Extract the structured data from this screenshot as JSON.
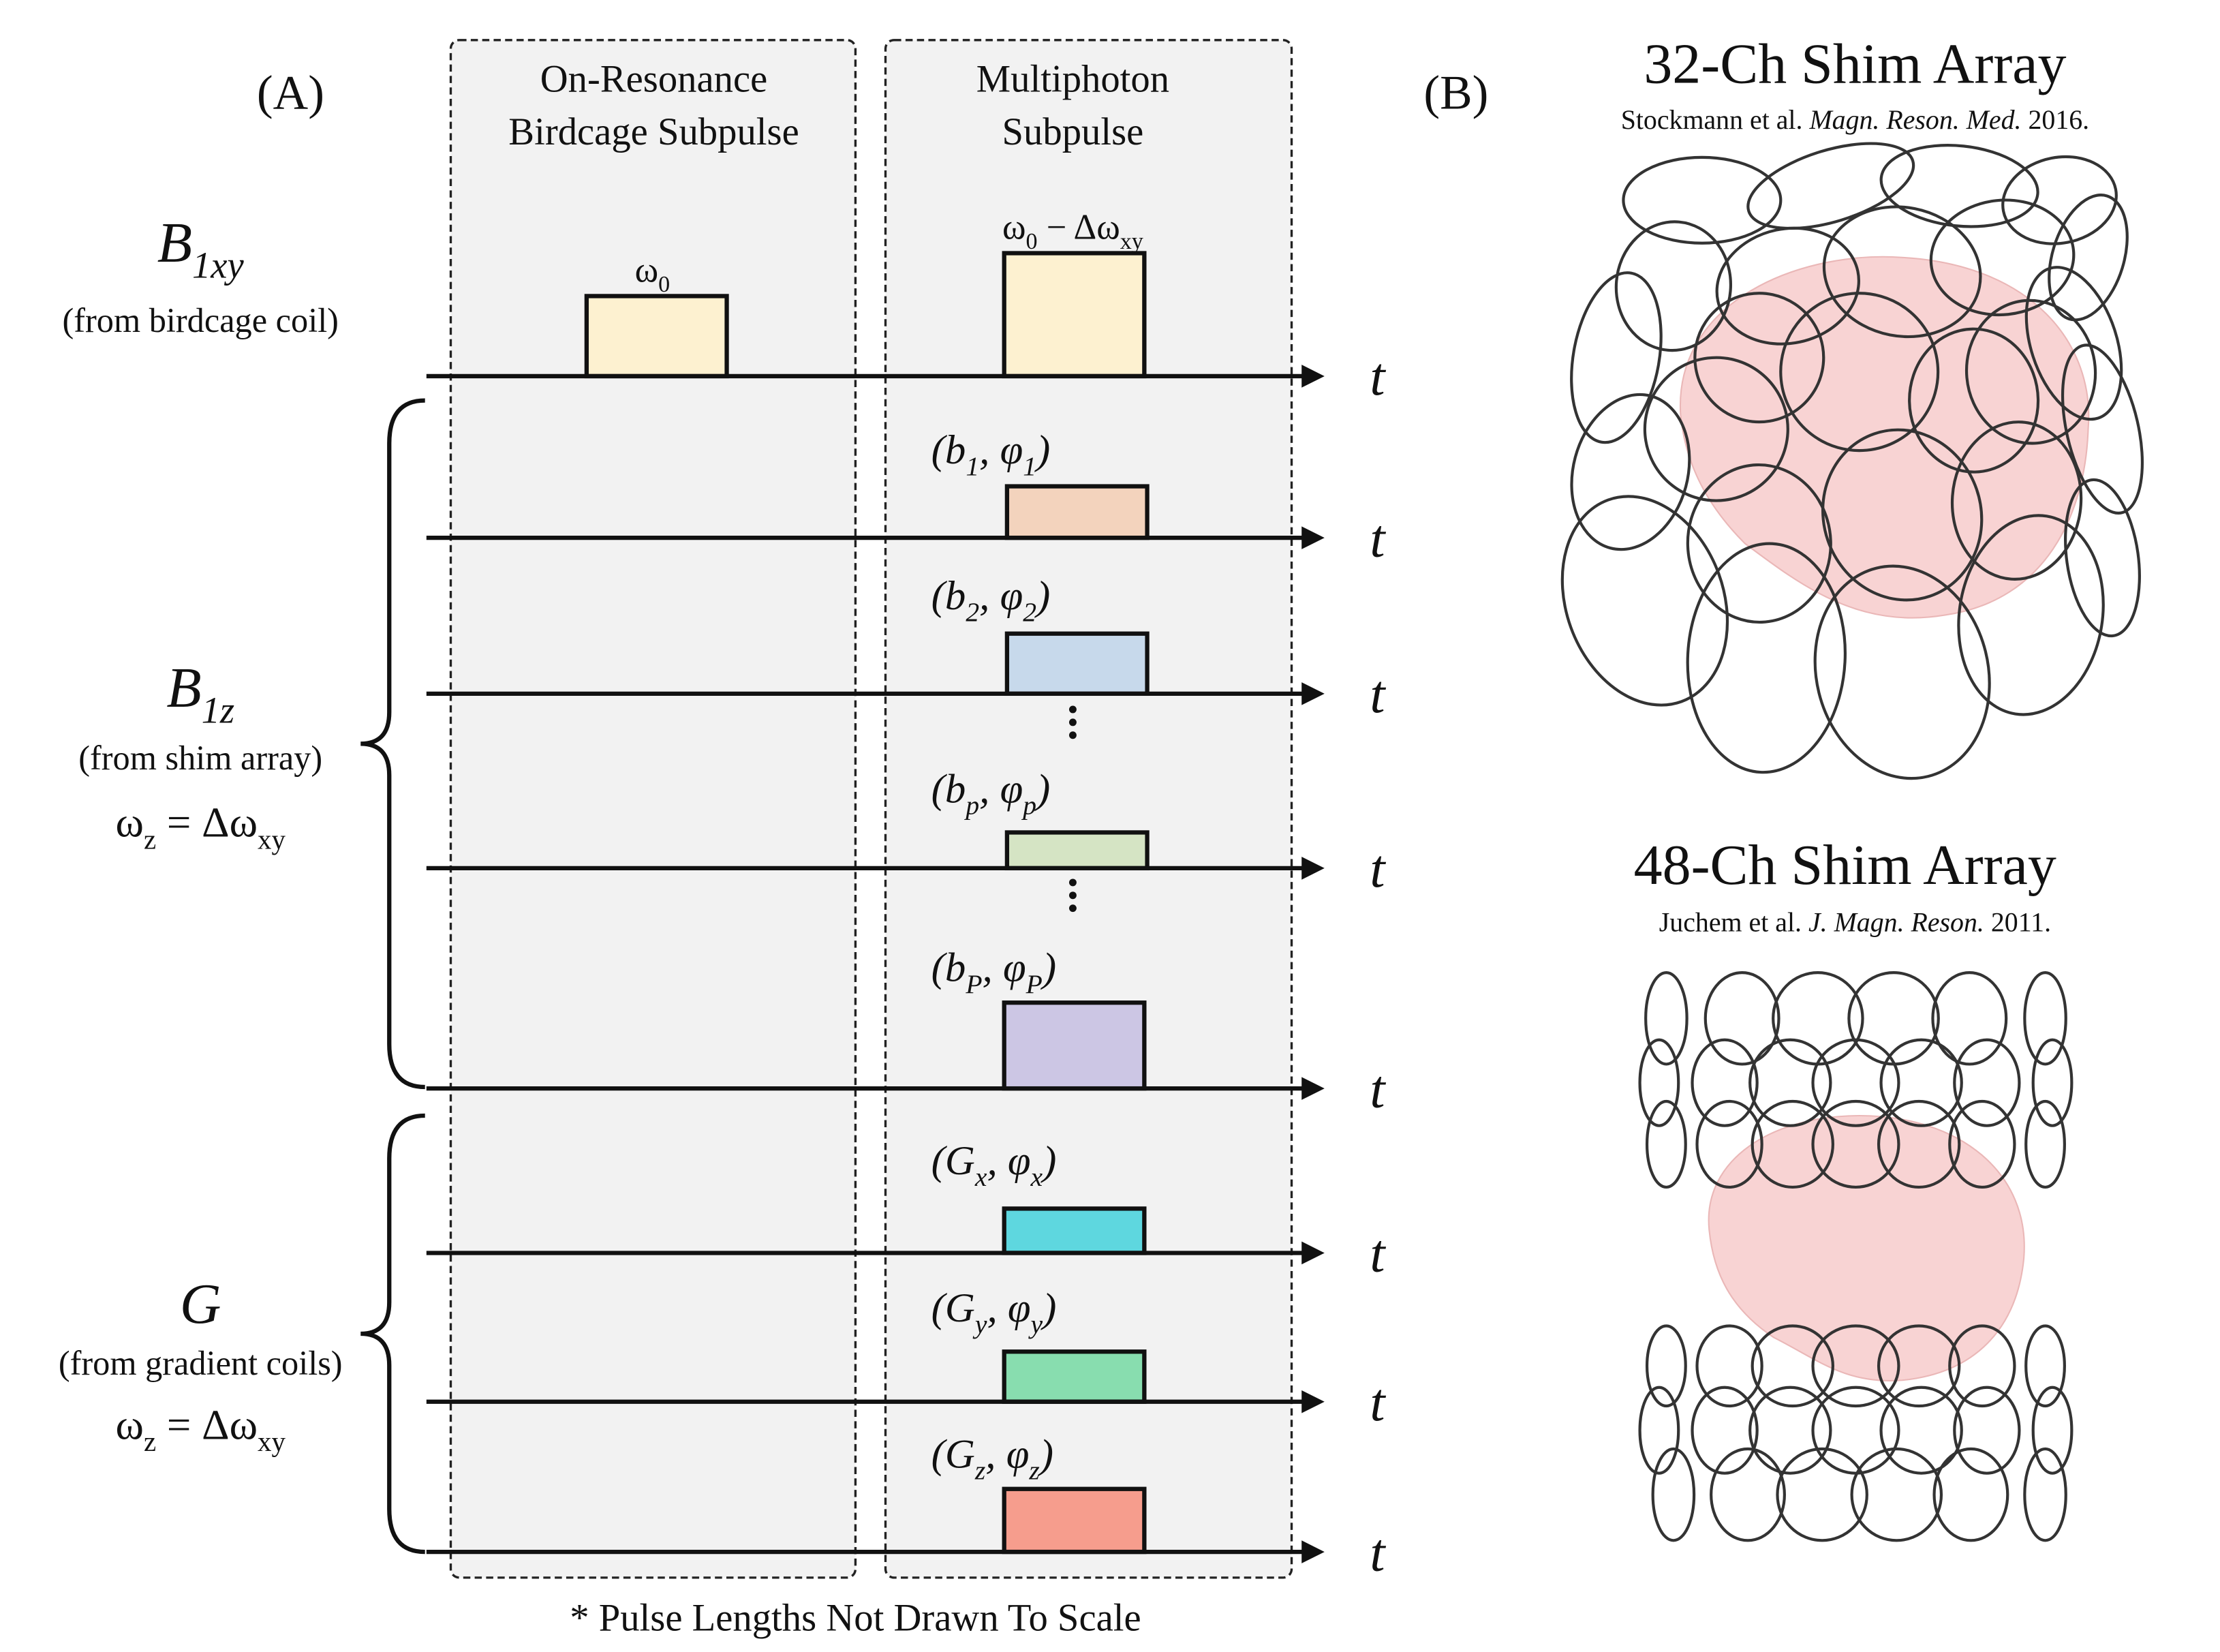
{
  "panel_a": {
    "label": "(A)",
    "columns": [
      {
        "lines": [
          "On-Resonance",
          "Birdcage Subpulse"
        ]
      },
      {
        "lines": [
          "Multiphoton",
          "Subpulse"
        ]
      }
    ],
    "groups": [
      {
        "symbol": [
          "B",
          "1xy"
        ],
        "source": "(from birdcage coil)"
      },
      {
        "symbol": [
          "B",
          "1z"
        ],
        "source": "(from shim array)",
        "condition": [
          "ω",
          "z",
          " = Δω",
          "xy"
        ]
      },
      {
        "symbol": [
          "G"
        ],
        "source": "(from gradient coils)",
        "condition": [
          "ω",
          "z",
          " = Δω",
          "xy"
        ]
      }
    ],
    "rows": [
      {
        "pulses": [
          {
            "label": [
              "ω",
              "0"
            ]
          },
          {
            "label": [
              "ω",
              "0",
              " − Δω",
              "xy"
            ]
          }
        ],
        "axis_label": "t"
      },
      {
        "pulses": [
          {
            "label": [
              "(b",
              "1",
              ", φ",
              "1",
              ")"
            ]
          }
        ],
        "axis_label": "t"
      },
      {
        "pulses": [
          {
            "label": [
              "(b",
              "2",
              ", φ",
              "2",
              ")"
            ]
          }
        ],
        "axis_label": "t"
      },
      {
        "pulses": [
          {
            "label": [
              "(b",
              "p",
              ", φ",
              "p",
              ")"
            ]
          }
        ],
        "axis_label": "t"
      },
      {
        "pulses": [
          {
            "label": [
              "(b",
              "P",
              ", φ",
              "P",
              ")"
            ]
          }
        ],
        "axis_label": "t"
      },
      {
        "pulses": [
          {
            "label": [
              "(G",
              "x",
              ", φ",
              "x",
              ")"
            ]
          }
        ],
        "axis_label": "t"
      },
      {
        "pulses": [
          {
            "label": [
              "(G",
              "y",
              ", φ",
              "y",
              ")"
            ]
          }
        ],
        "axis_label": "t"
      },
      {
        "pulses": [
          {
            "label": [
              "(G",
              "z",
              ", φ",
              "z",
              ")"
            ]
          }
        ],
        "axis_label": "t"
      }
    ],
    "footnote": "* Pulse Lengths Not Drawn To Scale"
  },
  "panel_b": {
    "label": "(B)",
    "arrays": [
      {
        "title": "32-Ch Shim Array",
        "citation": [
          "Stockmann et al. ",
          "Magn. Reson. Med.",
          " 2016."
        ]
      },
      {
        "title": "48-Ch Shim Array",
        "citation": [
          "Juchem et al. ",
          "J. Magn. Reson.",
          " 2011."
        ]
      }
    ]
  }
}
